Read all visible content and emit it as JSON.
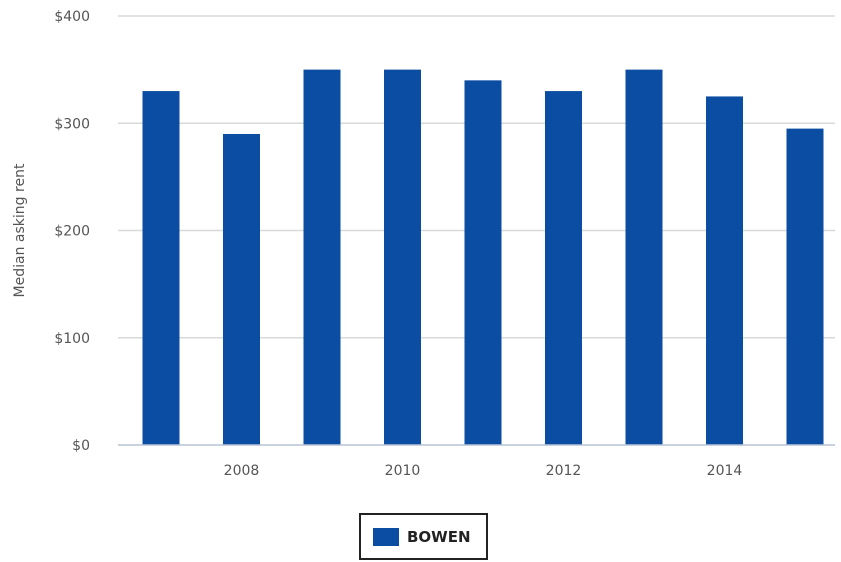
{
  "chart_data": {
    "type": "bar",
    "title": "",
    "xlabel": "",
    "ylabel": "Median asking rent",
    "x": [
      2007,
      2008,
      2009,
      2010,
      2011,
      2012,
      2013,
      2014,
      2015
    ],
    "x_tick_labels": [
      "2008",
      "2010",
      "2012",
      "2014"
    ],
    "y_tick_labels": [
      "$0",
      "$100",
      "$200",
      "$300",
      "$400"
    ],
    "ylim": [
      0,
      400
    ],
    "grid": true,
    "legend_position": "bottom-center",
    "series": [
      {
        "name": "BOWEN",
        "color": "#0b4da2",
        "values": [
          330,
          290,
          350,
          350,
          340,
          330,
          350,
          325,
          295
        ]
      }
    ]
  }
}
